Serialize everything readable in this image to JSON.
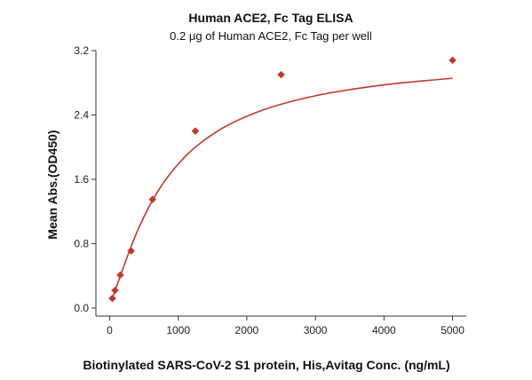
{
  "chart_data": {
    "type": "scatter",
    "title": "Human ACE2, Fc Tag ELISA",
    "subtitle": "0.2 μg of Human ACE2, Fc Tag per well",
    "xlabel": "Biotinylated SARS-CoV-2 S1 protein, His,Avitag Conc. (ng/mL)",
    "ylabel": "Mean Abs.(OD450)",
    "xlim": [
      -200,
      5200
    ],
    "ylim": [
      -0.1,
      3.2
    ],
    "x_ticks": [
      0,
      1000,
      2000,
      3000,
      4000,
      5000
    ],
    "x_tick_labels": [
      "0",
      "1000",
      "2000",
      "3000",
      "4000",
      "5000"
    ],
    "y_ticks": [
      0.0,
      0.8,
      1.6,
      2.4,
      3.2
    ],
    "y_tick_labels": [
      "0.0",
      "0.8",
      "1.6",
      "2.4",
      "3.2"
    ],
    "grid": false,
    "series": [
      {
        "x": [
          39,
          78,
          156,
          313,
          625,
          1250,
          2500,
          5000
        ],
        "y": [
          0.12,
          0.22,
          0.41,
          0.71,
          1.35,
          2.2,
          2.9,
          3.08
        ],
        "marker": "diamond",
        "fit": "sigmoidal curve",
        "color": "#c0392b"
      }
    ]
  }
}
